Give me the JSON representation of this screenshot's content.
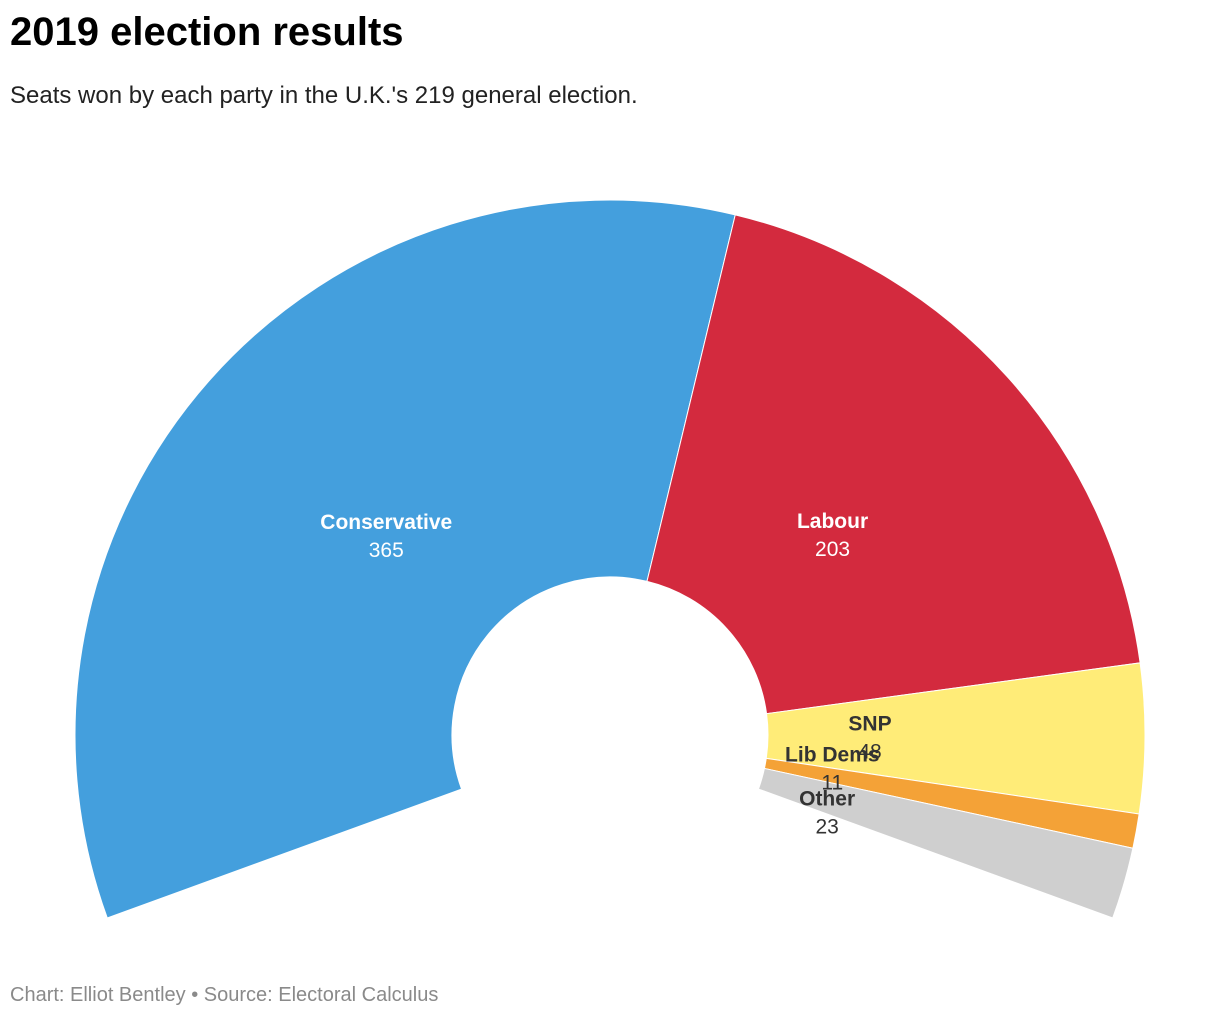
{
  "header": {
    "title": "2019 election results",
    "subtitle": "Seats won by each party in the U.K.'s 219 general election."
  },
  "footer": {
    "credit": "Chart: Elliot Bentley",
    "separator": "•",
    "source": "Source: Electoral Calculus"
  },
  "chart_data": {
    "type": "pie",
    "variant": "half-donut",
    "title": "2019 election results",
    "subtitle": "Seats won by each party in the U.K.'s 219 general election.",
    "categories": [
      "Conservative",
      "Labour",
      "SNP",
      "Lib Dems",
      "Other"
    ],
    "values": [
      365,
      203,
      48,
      11,
      23
    ],
    "colors": [
      "#449fdd",
      "#d32a3e",
      "#ffec78",
      "#f4a237",
      "#cfcfcf"
    ],
    "label_colors": [
      "#ffffff",
      "#ffffff",
      "#333333",
      "#333333",
      "#333333"
    ]
  }
}
